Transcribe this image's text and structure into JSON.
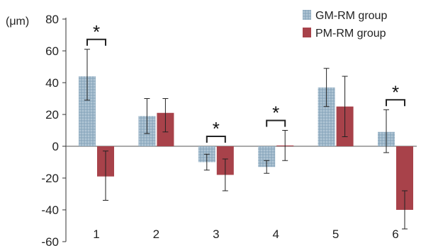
{
  "chart_data": {
    "type": "bar",
    "title": "",
    "xlabel": "",
    "ylabel": "(μm)",
    "ylim": [
      -60,
      80
    ],
    "yticks": [
      -60,
      -40,
      -20,
      0,
      20,
      40,
      60,
      80
    ],
    "categories": [
      "1",
      "2",
      "3",
      "4",
      "5",
      "6"
    ],
    "series": [
      {
        "name": "GM-RM group",
        "color": "#9bb5c8",
        "values": [
          44,
          19,
          -10,
          -13,
          37,
          9
        ],
        "err_low": [
          29,
          8,
          -15,
          -17,
          25,
          -4
        ],
        "err_high": [
          61,
          30,
          -5,
          -9,
          49,
          23
        ]
      },
      {
        "name": "PM-RM group",
        "color": "#a8424a",
        "values": [
          -19,
          21,
          -18,
          0.5,
          25,
          -40
        ],
        "err_low": [
          -34,
          9,
          -28,
          -9,
          6,
          -52
        ],
        "err_high": [
          -3,
          30,
          -8,
          10,
          44,
          -28
        ]
      }
    ],
    "significance": [
      {
        "category": "1",
        "label": "*"
      },
      {
        "category": "3",
        "label": "*"
      },
      {
        "category": "4",
        "label": "*"
      },
      {
        "category": "6",
        "label": "*"
      }
    ],
    "legend_position": "top-right",
    "grid": false
  }
}
